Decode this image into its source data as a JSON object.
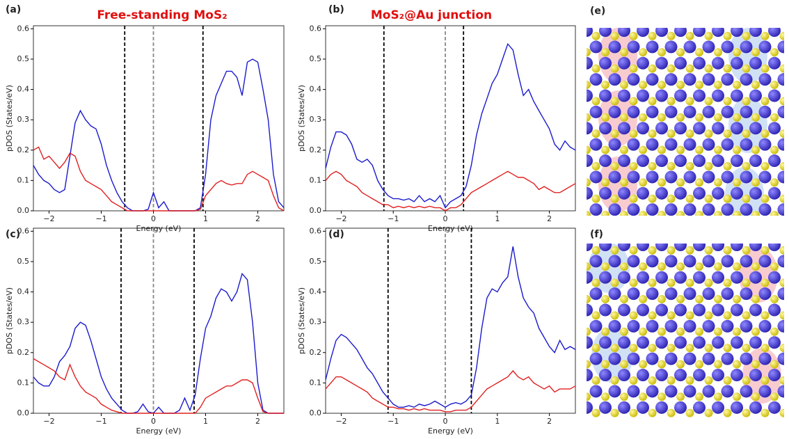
{
  "chart_data": [
    {
      "type": "line",
      "label": "(a)",
      "title": "Free-standing MoS₂",
      "xlabel": "Energy (eV)",
      "ylabel": "pDOS (States/eV)",
      "xlim": [
        -2.3,
        2.5
      ],
      "ylim": [
        0,
        0.61
      ],
      "xticks": [
        {
          "value": -2,
          "label": "−2"
        },
        {
          "value": -1,
          "label": "−1"
        },
        0,
        1,
        2
      ],
      "yticks": [
        {
          "value": 0,
          "label": "0.0"
        },
        0.1,
        0.2,
        0.3,
        0.4,
        0.5,
        0.6
      ],
      "vlines": [
        {
          "x": -0.55,
          "color": "#000000"
        },
        {
          "x": 0,
          "color": "#888888"
        },
        {
          "x": 0.95,
          "color": "#000000"
        }
      ],
      "x": [
        -2.3,
        -2.2,
        -2.1,
        -2.0,
        -1.9,
        -1.8,
        -1.7,
        -1.6,
        -1.5,
        -1.4,
        -1.3,
        -1.2,
        -1.1,
        -1.0,
        -0.9,
        -0.8,
        -0.7,
        -0.6,
        -0.5,
        -0.4,
        -0.3,
        -0.2,
        -0.1,
        0.0,
        0.1,
        0.2,
        0.3,
        0.4,
        0.5,
        0.6,
        0.7,
        0.8,
        0.9,
        1.0,
        1.1,
        1.2,
        1.3,
        1.4,
        1.5,
        1.6,
        1.7,
        1.8,
        1.9,
        2.0,
        2.1,
        2.2,
        2.3,
        2.4,
        2.5
      ],
      "series": [
        {
          "color": "#1a1acc",
          "values": [
            0.15,
            0.12,
            0.1,
            0.09,
            0.07,
            0.06,
            0.07,
            0.18,
            0.29,
            0.33,
            0.3,
            0.28,
            0.27,
            0.22,
            0.15,
            0.1,
            0.06,
            0.03,
            0.01,
            0,
            0,
            0,
            0.005,
            0.06,
            0.01,
            0.03,
            0,
            0,
            0,
            0,
            0,
            0,
            0.01,
            0.12,
            0.3,
            0.38,
            0.42,
            0.46,
            0.46,
            0.44,
            0.38,
            0.49,
            0.5,
            0.49,
            0.4,
            0.3,
            0.12,
            0.03,
            0.01
          ]
        },
        {
          "color": "#e02020",
          "values": [
            0.2,
            0.21,
            0.17,
            0.18,
            0.16,
            0.14,
            0.16,
            0.19,
            0.18,
            0.13,
            0.1,
            0.09,
            0.08,
            0.07,
            0.05,
            0.03,
            0.02,
            0.01,
            0,
            0,
            0,
            0,
            0,
            0,
            0,
            0,
            0,
            0,
            0,
            0,
            0,
            0,
            0.005,
            0.05,
            0.07,
            0.09,
            0.1,
            0.09,
            0.085,
            0.09,
            0.09,
            0.12,
            0.13,
            0.12,
            0.11,
            0.1,
            0.05,
            0.01,
            0
          ]
        }
      ]
    },
    {
      "type": "line",
      "label": "(b)",
      "title": "MoS₂@Au junction",
      "xlabel": "Energy (eV)",
      "ylabel": "pDOS (States/eV)",
      "xlim": [
        -2.3,
        2.5
      ],
      "ylim": [
        0,
        0.61
      ],
      "xticks": [
        {
          "value": -2,
          "label": "−2"
        },
        {
          "value": -1,
          "label": "−1"
        },
        0,
        1,
        2
      ],
      "yticks": [
        {
          "value": 0,
          "label": "0.0"
        },
        0.1,
        0.2,
        0.3,
        0.4,
        0.5,
        0.6
      ],
      "vlines": [
        {
          "x": -1.18,
          "color": "#000000"
        },
        {
          "x": 0,
          "color": "#888888"
        },
        {
          "x": 0.35,
          "color": "#000000"
        }
      ],
      "x": [
        -2.3,
        -2.2,
        -2.1,
        -2.0,
        -1.9,
        -1.8,
        -1.7,
        -1.6,
        -1.5,
        -1.4,
        -1.3,
        -1.2,
        -1.1,
        -1.0,
        -0.9,
        -0.8,
        -0.7,
        -0.6,
        -0.5,
        -0.4,
        -0.3,
        -0.2,
        -0.1,
        0.0,
        0.1,
        0.2,
        0.3,
        0.4,
        0.5,
        0.6,
        0.7,
        0.8,
        0.9,
        1.0,
        1.1,
        1.2,
        1.3,
        1.4,
        1.5,
        1.6,
        1.7,
        1.8,
        1.9,
        2.0,
        2.1,
        2.2,
        2.3,
        2.4,
        2.5
      ],
      "series": [
        {
          "color": "#1a1acc",
          "values": [
            0.14,
            0.21,
            0.26,
            0.26,
            0.25,
            0.22,
            0.17,
            0.16,
            0.17,
            0.15,
            0.1,
            0.07,
            0.05,
            0.04,
            0.04,
            0.035,
            0.04,
            0.03,
            0.05,
            0.03,
            0.04,
            0.03,
            0.05,
            0.01,
            0.03,
            0.04,
            0.05,
            0.08,
            0.15,
            0.25,
            0.32,
            0.37,
            0.42,
            0.45,
            0.5,
            0.55,
            0.53,
            0.45,
            0.38,
            0.4,
            0.36,
            0.33,
            0.3,
            0.27,
            0.22,
            0.2,
            0.23,
            0.21,
            0.2
          ]
        },
        {
          "color": "#e02020",
          "values": [
            0.1,
            0.12,
            0.13,
            0.12,
            0.1,
            0.09,
            0.08,
            0.06,
            0.05,
            0.04,
            0.03,
            0.02,
            0.02,
            0.01,
            0.015,
            0.01,
            0.015,
            0.01,
            0.015,
            0.01,
            0.015,
            0.01,
            0.01,
            0,
            0.01,
            0.01,
            0.02,
            0.04,
            0.06,
            0.07,
            0.08,
            0.09,
            0.1,
            0.11,
            0.12,
            0.13,
            0.12,
            0.11,
            0.11,
            0.1,
            0.09,
            0.07,
            0.08,
            0.07,
            0.06,
            0.06,
            0.07,
            0.08,
            0.09
          ]
        }
      ]
    },
    {
      "type": "line",
      "label": "(c)",
      "xlabel": "Energy (eV)",
      "ylabel": "pDOS (States/eV)",
      "xlim": [
        -2.3,
        2.5
      ],
      "ylim": [
        0,
        0.61
      ],
      "xticks": [
        {
          "value": -2,
          "label": "−2"
        },
        {
          "value": -1,
          "label": "−1"
        },
        0,
        1,
        2
      ],
      "yticks": [
        {
          "value": 0,
          "label": "0.0"
        },
        0.1,
        0.2,
        0.3,
        0.4,
        0.5,
        0.6
      ],
      "vlines": [
        {
          "x": -0.62,
          "color": "#000000"
        },
        {
          "x": 0,
          "color": "#888888"
        },
        {
          "x": 0.78,
          "color": "#000000"
        }
      ],
      "x": [
        -2.3,
        -2.2,
        -2.1,
        -2.0,
        -1.9,
        -1.8,
        -1.7,
        -1.6,
        -1.5,
        -1.4,
        -1.3,
        -1.2,
        -1.1,
        -1.0,
        -0.9,
        -0.8,
        -0.7,
        -0.6,
        -0.5,
        -0.4,
        -0.3,
        -0.2,
        -0.1,
        0.0,
        0.1,
        0.2,
        0.3,
        0.4,
        0.5,
        0.6,
        0.7,
        0.8,
        0.9,
        1.0,
        1.1,
        1.2,
        1.3,
        1.4,
        1.5,
        1.6,
        1.7,
        1.8,
        1.9,
        2.0,
        2.1,
        2.2,
        2.3,
        2.4,
        2.5
      ],
      "series": [
        {
          "color": "#1a1acc",
          "values": [
            0.12,
            0.1,
            0.09,
            0.09,
            0.12,
            0.17,
            0.19,
            0.22,
            0.28,
            0.3,
            0.29,
            0.24,
            0.18,
            0.12,
            0.08,
            0.05,
            0.03,
            0.01,
            0,
            0,
            0.005,
            0.03,
            0.005,
            0,
            0.02,
            0,
            0,
            0,
            0.01,
            0.05,
            0.01,
            0.06,
            0.18,
            0.28,
            0.32,
            0.38,
            0.41,
            0.4,
            0.37,
            0.4,
            0.46,
            0.44,
            0.3,
            0.1,
            0.01,
            0,
            0,
            0,
            0
          ]
        },
        {
          "color": "#e02020",
          "values": [
            0.18,
            0.17,
            0.16,
            0.15,
            0.14,
            0.12,
            0.11,
            0.16,
            0.12,
            0.09,
            0.07,
            0.06,
            0.05,
            0.03,
            0.02,
            0.01,
            0.005,
            0,
            0,
            0,
            0,
            0,
            0,
            0,
            0,
            0,
            0,
            0,
            0,
            0,
            0,
            0,
            0.02,
            0.05,
            0.06,
            0.07,
            0.08,
            0.09,
            0.09,
            0.1,
            0.11,
            0.11,
            0.1,
            0.05,
            0.005,
            0,
            0,
            0,
            0
          ]
        }
      ]
    },
    {
      "type": "line",
      "label": "(d)",
      "xlabel": "Energy (eV)",
      "ylabel": "pDOS (States/eV)",
      "xlim": [
        -2.3,
        2.5
      ],
      "ylim": [
        0,
        0.61
      ],
      "xticks": [
        {
          "value": -2,
          "label": "−2"
        },
        {
          "value": -1,
          "label": "−1"
        },
        0,
        1,
        2
      ],
      "yticks": [
        {
          "value": 0,
          "label": "0.0"
        },
        0.1,
        0.2,
        0.3,
        0.4,
        0.5,
        0.6
      ],
      "vlines": [
        {
          "x": -1.1,
          "color": "#000000"
        },
        {
          "x": 0,
          "color": "#888888"
        },
        {
          "x": 0.5,
          "color": "#000000"
        }
      ],
      "x": [
        -2.3,
        -2.2,
        -2.1,
        -2.0,
        -1.9,
        -1.8,
        -1.7,
        -1.6,
        -1.5,
        -1.4,
        -1.3,
        -1.2,
        -1.1,
        -1.0,
        -0.9,
        -0.8,
        -0.7,
        -0.6,
        -0.5,
        -0.4,
        -0.3,
        -0.2,
        -0.1,
        0.0,
        0.1,
        0.2,
        0.3,
        0.4,
        0.5,
        0.6,
        0.7,
        0.8,
        0.9,
        1.0,
        1.1,
        1.2,
        1.3,
        1.4,
        1.5,
        1.6,
        1.7,
        1.8,
        1.9,
        2.0,
        2.1,
        2.2,
        2.3,
        2.4,
        2.5
      ],
      "series": [
        {
          "color": "#1a1acc",
          "values": [
            0.11,
            0.18,
            0.24,
            0.26,
            0.25,
            0.23,
            0.21,
            0.18,
            0.15,
            0.13,
            0.1,
            0.07,
            0.05,
            0.03,
            0.02,
            0.02,
            0.025,
            0.02,
            0.03,
            0.025,
            0.03,
            0.04,
            0.03,
            0.02,
            0.03,
            0.035,
            0.03,
            0.04,
            0.06,
            0.15,
            0.28,
            0.38,
            0.41,
            0.4,
            0.43,
            0.45,
            0.55,
            0.45,
            0.38,
            0.35,
            0.33,
            0.28,
            0.25,
            0.22,
            0.2,
            0.24,
            0.21,
            0.22,
            0.21
          ]
        },
        {
          "color": "#e02020",
          "values": [
            0.08,
            0.1,
            0.12,
            0.12,
            0.11,
            0.1,
            0.09,
            0.08,
            0.07,
            0.05,
            0.04,
            0.03,
            0.02,
            0.02,
            0.015,
            0.015,
            0.01,
            0.015,
            0.01,
            0.015,
            0.01,
            0.01,
            0.01,
            0.005,
            0.005,
            0.01,
            0.01,
            0.01,
            0.02,
            0.04,
            0.06,
            0.08,
            0.09,
            0.1,
            0.11,
            0.12,
            0.14,
            0.12,
            0.11,
            0.12,
            0.1,
            0.09,
            0.08,
            0.09,
            0.07,
            0.08,
            0.08,
            0.08,
            0.09
          ]
        }
      ]
    }
  ],
  "panels": [
    {
      "label": "(e)"
    },
    {
      "label": "(f)"
    }
  ]
}
